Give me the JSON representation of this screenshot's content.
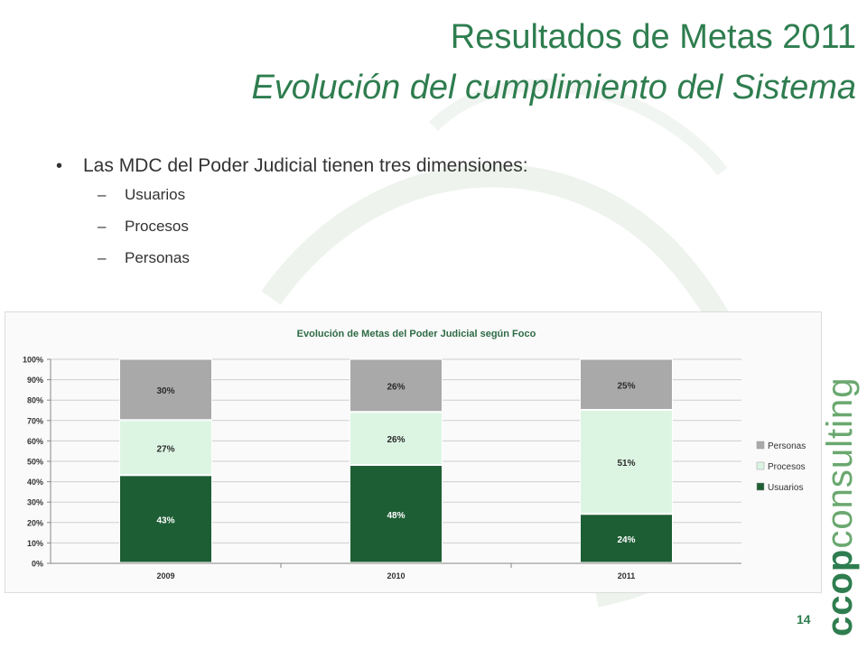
{
  "slide": {
    "title_line1": "Resultados de Metas 2011",
    "title_line2": "Evolución del cumplimiento del Sistema",
    "bullet": "Las MDC del Poder Judicial tienen tres dimensiones:",
    "sub_items": [
      "Usuarios",
      "Procesos",
      "Personas"
    ],
    "bullet_symbol": "•",
    "dash_symbol": "–",
    "page_number": "14",
    "brand": {
      "bold": "ccop",
      "rest": "consulting"
    }
  },
  "colors": {
    "title": "#2e7d4f",
    "usuarios": "#1e5e34",
    "procesos": "#dcf5e2",
    "personas": "#a9a9a9"
  },
  "chart_data": {
    "type": "bar",
    "stacked": true,
    "title": "Evolución de Metas del Poder Judicial según Foco",
    "categories": [
      "2009",
      "2010",
      "2011"
    ],
    "series": [
      {
        "name": "Usuarios",
        "values": [
          43,
          48,
          24
        ]
      },
      {
        "name": "Procesos",
        "values": [
          27,
          26,
          51
        ]
      },
      {
        "name": "Personas",
        "values": [
          30,
          26,
          25
        ]
      }
    ],
    "y_ticks": [
      "0%",
      "10%",
      "20%",
      "30%",
      "40%",
      "50%",
      "60%",
      "70%",
      "80%",
      "90%",
      "100%"
    ],
    "ylim": [
      0,
      100
    ],
    "grid": true,
    "legend_position": "right"
  }
}
